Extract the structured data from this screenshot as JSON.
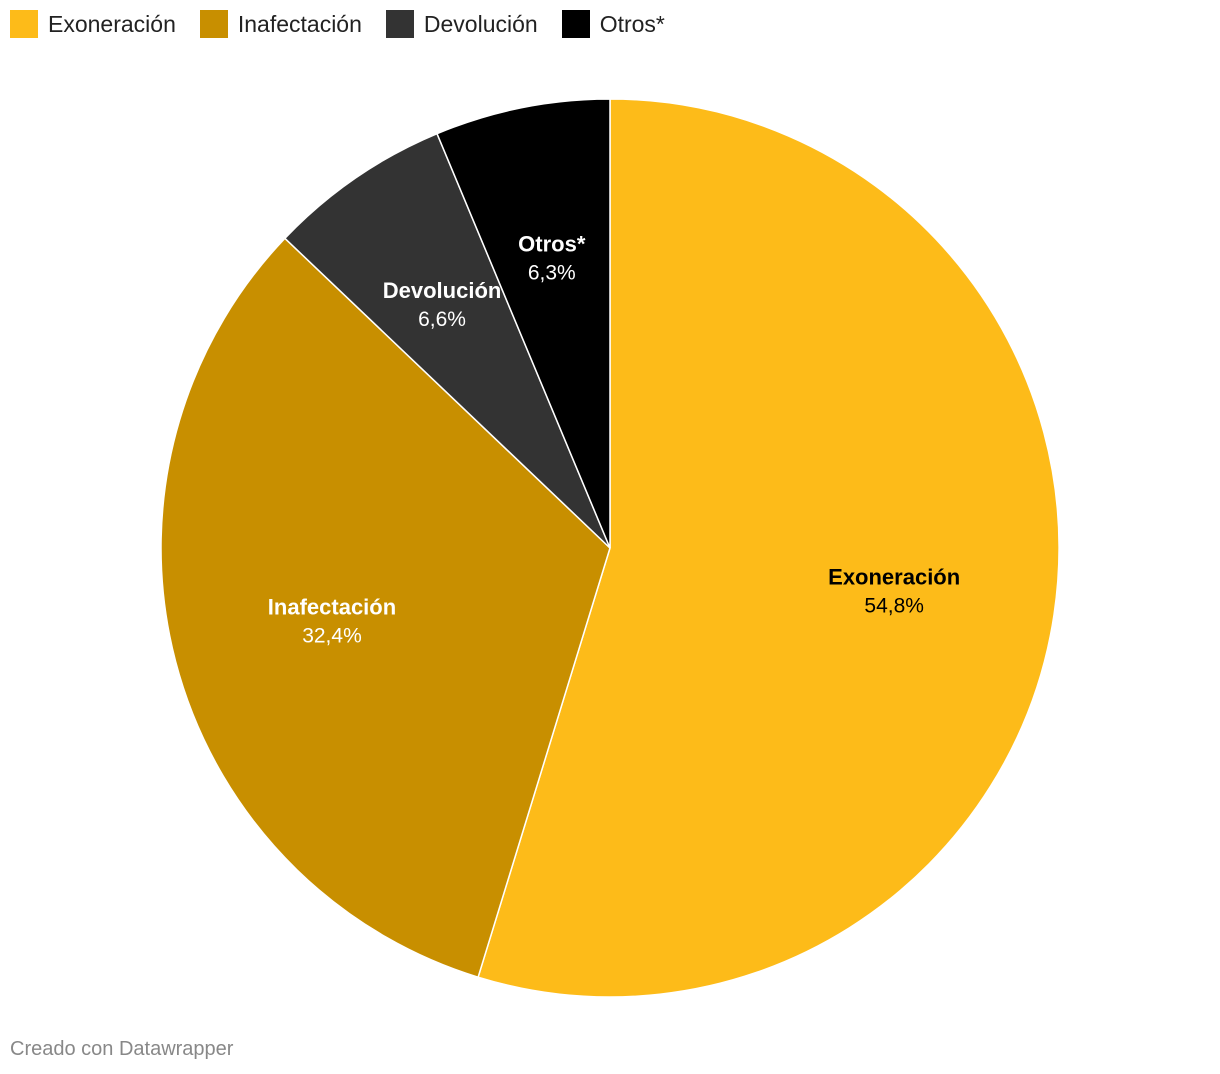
{
  "chart_data": {
    "type": "pie",
    "categories": [
      "Exoneración",
      "Inafectación",
      "Devolución",
      "Otros*"
    ],
    "values": [
      54.8,
      32.4,
      6.6,
      6.3
    ],
    "value_labels": [
      "54,8%",
      "32,4%",
      "6,6%",
      "6,3%"
    ],
    "colors": [
      "#fdbb19",
      "#c88f00",
      "#333333",
      "#000000"
    ],
    "label_colors": [
      "#000000",
      "#ffffff",
      "#ffffff",
      "#ffffff"
    ],
    "start": "top",
    "direction": "clockwise",
    "legend_position": "top-left"
  },
  "footer": {
    "credit": "Creado con Datawrapper"
  }
}
